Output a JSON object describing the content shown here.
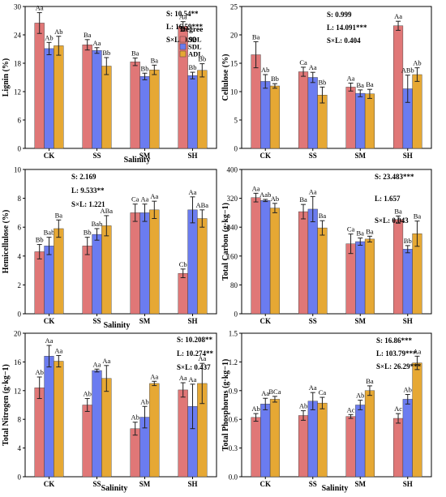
{
  "legend": {
    "title": "Degree",
    "items": [
      {
        "name": "SDL",
        "color": "#e07777"
      },
      {
        "name": "SDL",
        "color": "#6b7cf0"
      },
      {
        "name": "ADL",
        "color": "#e6a834"
      }
    ]
  },
  "chart_data": [
    {
      "type": "bar",
      "ylabel": "Lignin (%)",
      "xlabel": "Salinity",
      "ylim": [
        0,
        30
      ],
      "yticks": [
        "0",
        "6",
        "12",
        "18",
        "24",
        "30"
      ],
      "categories": [
        "CK",
        "SS",
        "SM",
        "SH"
      ],
      "series": [
        {
          "name": "SDL",
          "color": "#e07777",
          "values": [
            26.5,
            21.9,
            18.3,
            25.8
          ],
          "errors": [
            2.2,
            1.1,
            0.8,
            1.0
          ],
          "labels": [
            "Aa",
            "Ba",
            "Ba",
            "Aa"
          ]
        },
        {
          "name": "SDL",
          "color": "#6b7cf0",
          "values": [
            21.1,
            20.7,
            15.2,
            15.4
          ],
          "errors": [
            1.3,
            0.6,
            0.7,
            0.7
          ],
          "labels": [
            "Ab",
            "Aa",
            "Bb",
            "Bb"
          ]
        },
        {
          "name": "ADL",
          "color": "#e6a834",
          "values": [
            21.7,
            17.4,
            16.6,
            16.5
          ],
          "errors": [
            2.0,
            1.8,
            1.0,
            1.4
          ],
          "labels": [
            "Ab",
            "Bb",
            "Ba",
            "Bb"
          ]
        }
      ],
      "stats": [
        "S: 10.54**",
        "L: 16.59***",
        "S×L: 0.92"
      ]
    },
    {
      "type": "bar",
      "ylabel": "Cellulose (%)",
      "xlabel": "",
      "ylim": [
        0,
        25
      ],
      "yticks": [
        "0",
        "5",
        "10",
        "15",
        "20",
        "25"
      ],
      "categories": [
        "CK",
        "SS",
        "SM",
        "SH"
      ],
      "series": [
        {
          "name": "SDL",
          "color": "#e07777",
          "values": [
            16.5,
            13.5,
            10.8,
            21.6
          ],
          "errors": [
            2.3,
            0.8,
            0.7,
            0.8
          ],
          "labels": [
            "Ba",
            "Ca",
            "Aa",
            "Aa"
          ]
        },
        {
          "name": "SDL",
          "color": "#6b7cf0",
          "values": [
            11.8,
            12.5,
            9.7,
            10.5
          ],
          "errors": [
            1.2,
            0.9,
            0.6,
            2.4
          ],
          "labels": [
            "Ab",
            "Aa",
            "Ba",
            "ABb"
          ]
        },
        {
          "name": "ADL",
          "color": "#e6a834",
          "values": [
            11.0,
            9.4,
            9.6,
            13.0
          ],
          "errors": [
            0.4,
            1.4,
            0.8,
            1.2
          ],
          "labels": [
            "Bb",
            "Bb",
            "Ba",
            "Ab"
          ]
        }
      ],
      "stats": [
        "S: 0.999",
        "L: 14.091***",
        "S×L: 0.404"
      ]
    },
    {
      "type": "bar",
      "ylabel": "Hemicellulose (%)",
      "xlabel": "Salinity",
      "ylim": [
        0,
        10
      ],
      "yticks": [
        "0",
        "2",
        "4",
        "6",
        "8",
        "10"
      ],
      "categories": [
        "CK",
        "SS",
        "SM",
        "SH"
      ],
      "series": [
        {
          "name": "SDL",
          "color": "#e07777",
          "values": [
            4.3,
            4.7,
            7.0,
            2.8
          ],
          "errors": [
            0.5,
            0.6,
            0.6,
            0.3
          ],
          "labels": [
            "Bb",
            "Bb",
            "Ca",
            "Cb"
          ]
        },
        {
          "name": "SDL",
          "color": "#6b7cf0",
          "values": [
            4.7,
            5.5,
            7.0,
            7.2
          ],
          "errors": [
            0.6,
            0.4,
            0.6,
            0.9
          ],
          "labels": [
            "Bab",
            "Bab",
            "Aa",
            "Aa"
          ]
        },
        {
          "name": "ADL",
          "color": "#e6a834",
          "values": [
            5.9,
            6.1,
            7.2,
            6.6
          ],
          "errors": [
            0.6,
            0.7,
            0.6,
            0.6
          ],
          "labels": [
            "Ba",
            "ABa",
            "Aa",
            "ABa"
          ]
        }
      ],
      "stats": [
        "S: 2.169",
        "L: 9.533**",
        "S×L: 1.221"
      ]
    },
    {
      "type": "bar",
      "ylabel": "Total Carbon (g·kg−1)",
      "xlabel": "",
      "ylim": [
        0,
        400
      ],
      "yticks": [
        "0",
        "80",
        "160",
        "240",
        "320",
        "400"
      ],
      "categories": [
        "CK",
        "SS",
        "SM",
        "SH"
      ],
      "series": [
        {
          "name": "SDL",
          "color": "#e07777",
          "values": [
            322,
            283,
            194,
            261
          ],
          "errors": [
            12,
            20,
            27,
            10
          ],
          "labels": [
            "Aa",
            "Ba",
            "Ca",
            "Ba"
          ]
        },
        {
          "name": "SDL",
          "color": "#6b7cf0",
          "values": [
            314,
            290,
            200,
            179
          ],
          "errors": [
            3,
            35,
            10,
            10
          ],
          "labels": [
            "Aab",
            "Aa",
            "Ba",
            "Bb"
          ]
        },
        {
          "name": "ADL",
          "color": "#e6a834",
          "values": [
            293,
            238,
            207,
            222
          ],
          "errors": [
            13,
            20,
            8,
            35
          ],
          "labels": [
            "Ab",
            "Ba",
            "Ba",
            "Ba"
          ]
        }
      ],
      "stats": [
        "S: 23.483***",
        "L: 1.657",
        "S×L: 0.043"
      ]
    },
    {
      "type": "bar",
      "ylabel": "Total Nitrogen (g·kg−1)",
      "xlabel": "Salinity",
      "ylim": [
        0,
        20
      ],
      "yticks": [
        "0",
        "4",
        "8",
        "12",
        "16",
        "20"
      ],
      "categories": [
        "CK",
        "SS",
        "SM",
        "SH"
      ],
      "series": [
        {
          "name": "SDL",
          "color": "#e07777",
          "values": [
            12.4,
            10.0,
            6.7,
            12.1
          ],
          "errors": [
            1.5,
            0.9,
            0.9,
            1.0
          ],
          "labels": [
            "Ab",
            "Ab",
            "Ab",
            "Aa"
          ]
        },
        {
          "name": "SDL",
          "color": "#6b7cf0",
          "values": [
            16.8,
            14.8,
            8.3,
            9.8
          ],
          "errors": [
            1.5,
            0.2,
            1.5,
            3.1
          ],
          "labels": [
            "Aa",
            "Aa",
            "Ab",
            "Aa"
          ]
        },
        {
          "name": "ADL",
          "color": "#e6a834",
          "values": [
            16.1,
            13.7,
            13.0,
            13.0
          ],
          "errors": [
            0.8,
            1.8,
            0.3,
            2.8
          ],
          "labels": [
            "Aa",
            "Aa",
            "Aa",
            "Aa"
          ]
        }
      ],
      "stats": [
        "S: 10.208**",
        "L: 10.274**",
        "S×L: 0.437"
      ]
    },
    {
      "type": "bar",
      "ylabel": "Total Phosphorus (g·kg−1)",
      "xlabel": "Salinity",
      "ylim": [
        0,
        1.5
      ],
      "yticks": [
        "0.0",
        "0.3",
        "0.6",
        "0.9",
        "1.2",
        "1.5"
      ],
      "categories": [
        "CK",
        "SS",
        "SM",
        "SH"
      ],
      "series": [
        {
          "name": "SDL",
          "color": "#e07777",
          "values": [
            0.62,
            0.64,
            0.63,
            0.61
          ],
          "errors": [
            0.04,
            0.05,
            0.02,
            0.05
          ],
          "labels": [
            "Ab",
            "Ab",
            "Ac",
            "Ac"
          ]
        },
        {
          "name": "SDL",
          "color": "#6b7cf0",
          "values": [
            0.76,
            0.79,
            0.75,
            0.81
          ],
          "errors": [
            0.06,
            0.09,
            0.05,
            0.05
          ],
          "labels": [
            "Aa",
            "Aa",
            "Ab",
            "Ab"
          ]
        },
        {
          "name": "ADL",
          "color": "#e6a834",
          "values": [
            0.81,
            0.77,
            0.9,
            1.19
          ],
          "errors": [
            0.03,
            0.06,
            0.05,
            0.07
          ],
          "labels": [
            "BCa",
            "Ca",
            "Ba",
            "Aa"
          ]
        }
      ],
      "stats": [
        "S: 16.86***",
        "L: 103.79***",
        "S×L: 26.29***"
      ]
    }
  ]
}
